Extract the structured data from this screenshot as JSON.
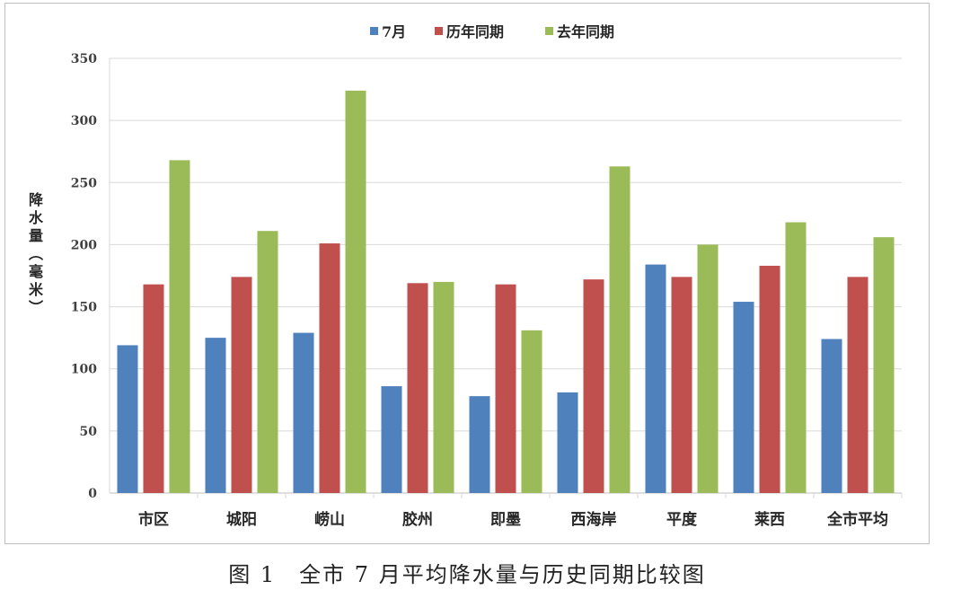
{
  "chart_data": {
    "type": "bar",
    "title": "",
    "caption": "图 1　全市 7 月平均降水量与历史同期比较图",
    "xlabel": "",
    "ylabel": "降水量（毫米）",
    "ylim": [
      0,
      350
    ],
    "yticks": [
      0,
      50,
      100,
      150,
      200,
      250,
      300,
      350
    ],
    "grid": true,
    "legend_position": "top",
    "categories": [
      "市区",
      "城阳",
      "崂山",
      "胶州",
      "即墨",
      "西海岸",
      "平度",
      "莱西",
      "全市平均"
    ],
    "series": [
      {
        "name": "7月",
        "color": "#4f81bd",
        "values": [
          119,
          125,
          129,
          86,
          78,
          81,
          184,
          154,
          124
        ]
      },
      {
        "name": "历年同期",
        "color": "#c0504d",
        "values": [
          168,
          174,
          201,
          169,
          168,
          172,
          174,
          183,
          174
        ]
      },
      {
        "name": "去年同期",
        "color": "#9bbb59",
        "values": [
          268,
          211,
          324,
          170,
          131,
          263,
          200,
          218,
          206
        ]
      }
    ]
  }
}
